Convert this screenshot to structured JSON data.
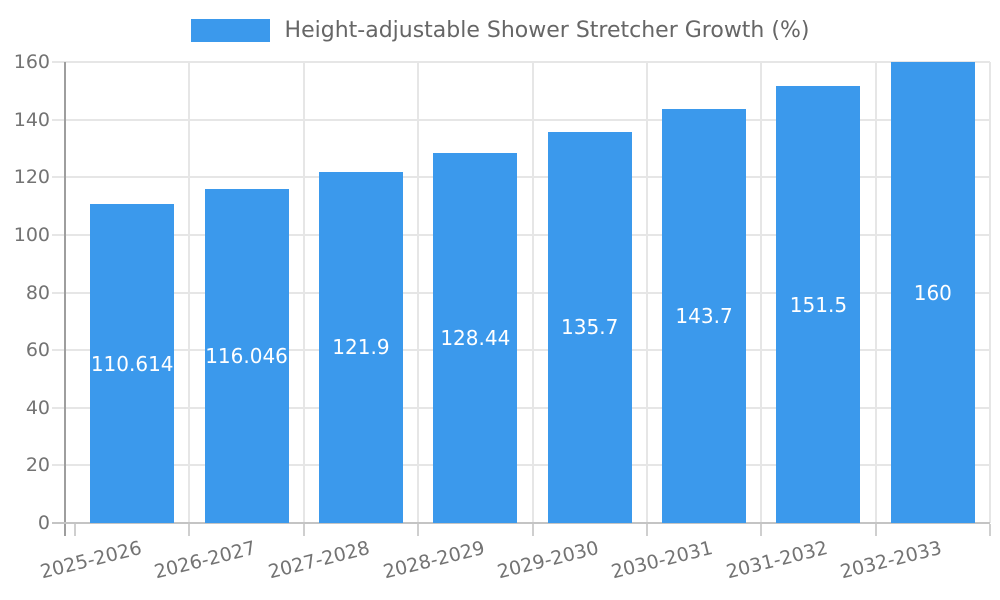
{
  "legend": {
    "label": "Height-adjustable Shower Stretcher Growth (%)",
    "swatch": "bar-color"
  },
  "colors": {
    "bar": "#3B99EC",
    "grid": "#E6E6E6",
    "axis_y": "#9E9E9E",
    "axis_x": "#C4C4C4",
    "tick_mark": "#CFCFCF",
    "tick_label": "#737373",
    "legend_text": "#666666",
    "value_label": "#FFFFFF",
    "background": "#FFFFFF"
  },
  "chart_data": {
    "type": "bar",
    "title": "Height-adjustable Shower Stretcher Growth (%)",
    "categories": [
      "2025-2026",
      "2026-2027",
      "2027-2028",
      "2028-2029",
      "2029-2030",
      "2030-2031",
      "2031-2032",
      "2032-2033"
    ],
    "values": [
      110.614,
      116.046,
      121.9,
      128.44,
      135.7,
      143.7,
      151.5,
      160
    ],
    "value_labels": [
      "110.614",
      "116.046",
      "121.9",
      "128.44",
      "135.7",
      "143.7",
      "151.5",
      "160"
    ],
    "xlabel": "",
    "ylabel": "",
    "ylim": [
      0,
      160
    ],
    "yticks": [
      0,
      20,
      40,
      60,
      80,
      100,
      120,
      140,
      160
    ],
    "grid": true,
    "grid_vertical": true,
    "legend_position": "top",
    "value_label_position": "center-of-bar",
    "x_label_rotation_deg": -14
  }
}
